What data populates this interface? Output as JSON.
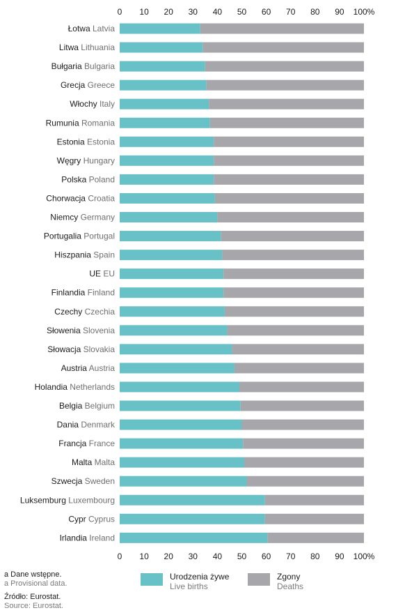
{
  "chart_data": {
    "type": "bar",
    "orientation": "horizontal",
    "stacked": "percent",
    "x_ticks": [
      "0",
      "10",
      "20",
      "30",
      "40",
      "50",
      "60",
      "70",
      "80",
      "90",
      "100%"
    ],
    "xlim": [
      0,
      100
    ],
    "categories": [
      {
        "pl": "Łotwa",
        "en": "Latvia"
      },
      {
        "pl": "Litwa",
        "en": "Lithuania"
      },
      {
        "pl": "Bułgaria",
        "en": "Bulgaria"
      },
      {
        "pl": "Grecja",
        "en": "Greece"
      },
      {
        "pl": "Włochy",
        "en": "Italy"
      },
      {
        "pl": "Rumunia",
        "en": "Romania"
      },
      {
        "pl": "Estonia",
        "en": "Estonia"
      },
      {
        "pl": "Węgry",
        "en": "Hungary"
      },
      {
        "pl": "Polska",
        "en": "Poland"
      },
      {
        "pl": "Chorwacja",
        "en": "Croatia"
      },
      {
        "pl": "Niemcy",
        "en": "Germany"
      },
      {
        "pl": "Portugalia",
        "en": "Portugal"
      },
      {
        "pl": "Hiszpania",
        "en": "Spain"
      },
      {
        "pl": "UE",
        "en": "EU"
      },
      {
        "pl": "Finlandia",
        "en": "Finland"
      },
      {
        "pl": "Czechy",
        "en": "Czechia"
      },
      {
        "pl": "Słowenia",
        "en": "Slovenia"
      },
      {
        "pl": "Słowacja",
        "en": "Slovakia"
      },
      {
        "pl": "Austria",
        "en": "Austria"
      },
      {
        "pl": "Holandia",
        "en": "Netherlands"
      },
      {
        "pl": "Belgia",
        "en": "Belgium"
      },
      {
        "pl": "Dania",
        "en": "Denmark"
      },
      {
        "pl": "Francja",
        "en": "France"
      },
      {
        "pl": "Malta",
        "en": "Malta"
      },
      {
        "pl": "Szwecja",
        "en": "Sweden"
      },
      {
        "pl": "Luksemburg",
        "en": "Luxembourg"
      },
      {
        "pl": "Cypr",
        "en": "Cyprus"
      },
      {
        "pl": "Irlandia",
        "en": "Ireland"
      }
    ],
    "series": [
      {
        "name": "Urodzenia żywe",
        "name_en": "Live births",
        "color": "#69c1c8",
        "values": [
          33,
          34,
          35,
          35.5,
          36.5,
          37,
          38.5,
          38.5,
          38.5,
          39,
          40,
          41.5,
          42,
          42.5,
          42.5,
          43,
          44,
          46,
          47,
          49,
          49.5,
          50,
          50.5,
          51,
          52,
          59.5,
          59.5,
          60.5
        ]
      },
      {
        "name": "Zgony",
        "name_en": "Deaths",
        "color": "#a7a6ab",
        "values": [
          67,
          66,
          65,
          64.5,
          63.5,
          63,
          61.5,
          61.5,
          61.5,
          61,
          60,
          58.5,
          58,
          57.5,
          57.5,
          57,
          56,
          54,
          53,
          51,
          50.5,
          50,
          49.5,
          49,
          48,
          40.5,
          40.5,
          39.5
        ]
      }
    ]
  },
  "notes": {
    "provisional_pl": "a Dane wstępne.",
    "provisional_en": "a Provisional data.",
    "source_pl": "Źródło: Eurostat.",
    "source_en": "Source: Eurostat."
  }
}
